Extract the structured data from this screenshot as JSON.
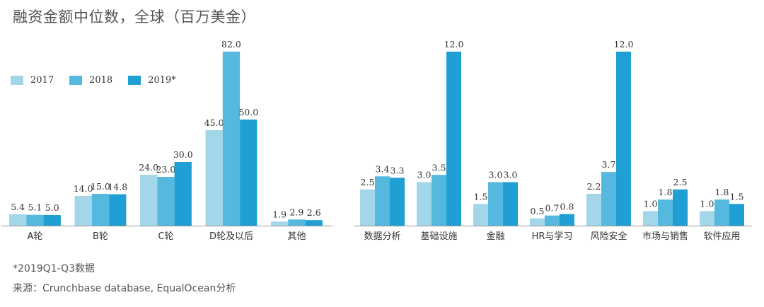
{
  "title": "融资金额中位数，全球（百万美金）",
  "legend": {
    "entries": [
      "2017",
      "2018",
      "2019*"
    ]
  },
  "colors": {
    "s2017": "#a3d6e8",
    "s2018": "#55b8de",
    "s2019": "#1f9fd4",
    "axis": "#999999"
  },
  "footnotes": {
    "note": "*2019Q1-Q3数据",
    "source": "来源：Crunchbase database, EqualOcean分析"
  },
  "chart_data": [
    {
      "type": "bar",
      "title": "",
      "xlabel": "",
      "ylabel": "",
      "ylim": [
        0,
        82
      ],
      "categories": [
        "A轮",
        "B轮",
        "C轮",
        "D轮及以后",
        "其他"
      ],
      "series": [
        {
          "name": "2017",
          "values": [
            5.4,
            14.0,
            24.0,
            45.0,
            1.9
          ]
        },
        {
          "name": "2018",
          "values": [
            5.1,
            15.0,
            23.0,
            82.0,
            2.9
          ]
        },
        {
          "name": "2019*",
          "values": [
            5.0,
            14.8,
            30.0,
            50.0,
            2.6
          ]
        }
      ],
      "value_labels": [
        [
          "5.4",
          "14.0",
          "24.0",
          "45.0",
          "1.9"
        ],
        [
          "5.1",
          "15.0",
          "23.0",
          "82.0",
          "2.9"
        ],
        [
          "5.0",
          "14.8",
          "30.0",
          "50.0",
          "2.6"
        ]
      ],
      "grid": false,
      "legend_position": "top-left"
    },
    {
      "type": "bar",
      "title": "",
      "xlabel": "",
      "ylabel": "",
      "ylim": [
        0,
        12
      ],
      "categories": [
        "数据分析",
        "基础设施",
        "金融",
        "HR与学习",
        "风险安全",
        "市场与销售",
        "软件应用"
      ],
      "series": [
        {
          "name": "2017",
          "values": [
            2.5,
            3.0,
            1.5,
            0.5,
            2.2,
            1.0,
            1.0
          ]
        },
        {
          "name": "2018",
          "values": [
            3.4,
            3.5,
            3.0,
            0.7,
            3.7,
            1.8,
            1.8
          ]
        },
        {
          "name": "2019*",
          "values": [
            3.3,
            12.0,
            3.0,
            0.8,
            12.0,
            2.5,
            1.5
          ]
        }
      ],
      "value_labels": [
        [
          "2.5",
          "3.0",
          "1.5",
          "0.5",
          "2.2",
          "1.0",
          "1.0"
        ],
        [
          "3.4",
          "3.5",
          "3.0",
          "0.7",
          "3.7",
          "1.8",
          "1.8"
        ],
        [
          "3.3",
          "12.0",
          "3.0",
          "0.8",
          "12.0",
          "2.5",
          "1.5"
        ]
      ],
      "grid": false
    }
  ]
}
